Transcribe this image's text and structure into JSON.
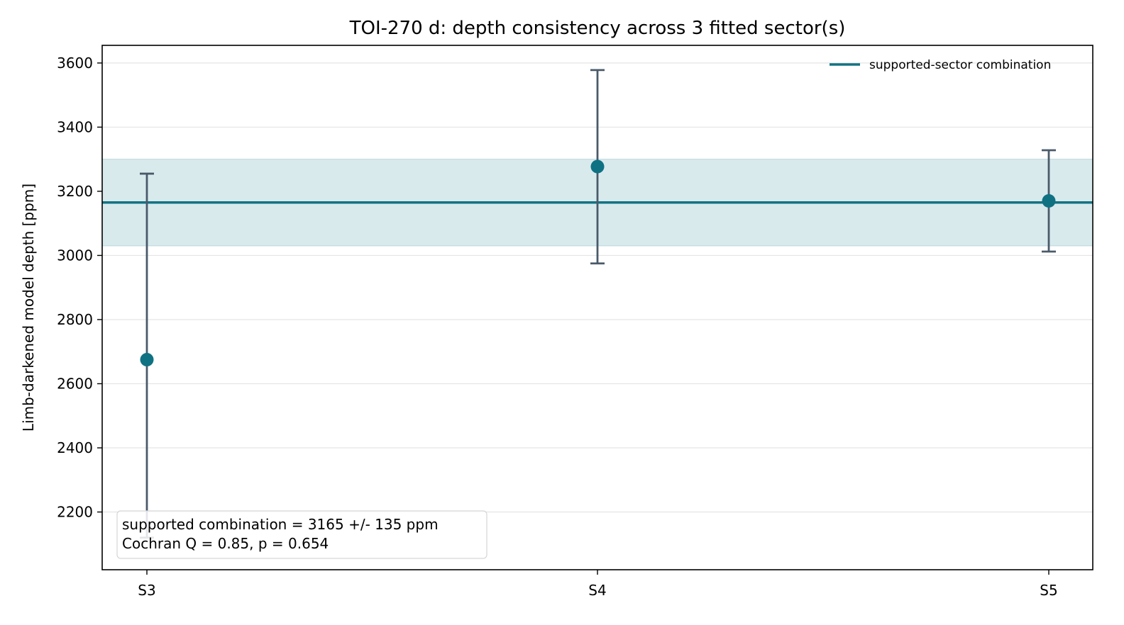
{
  "chart_data": {
    "type": "scatter",
    "title": "TOI-270 d: depth consistency across 3 fitted sector(s)",
    "xlabel": "",
    "ylabel": "Limb-darkened model depth [ppm]",
    "categories": [
      "S3",
      "S4",
      "S5"
    ],
    "values": [
      2675,
      3277,
      3170
    ],
    "err_low": [
      2120,
      2975,
      3012
    ],
    "err_high": [
      3255,
      3578,
      3328
    ],
    "combination": {
      "value": 3165,
      "band_low": 3030,
      "band_high": 3300
    },
    "ylim": [
      2020,
      3655
    ],
    "yticks": [
      2200,
      2400,
      2600,
      2800,
      3000,
      3200,
      3400,
      3600
    ],
    "grid": "horizontal",
    "legend": {
      "position": "top-right",
      "label": "supported-sector combination"
    },
    "annotation": [
      "supported combination = 3165 +/- 135 ppm",
      "Cochran Q = 0.85, p = 0.654"
    ],
    "colors": {
      "marker": "#0e7283",
      "errorbar": "#4a5a6a",
      "combination_line": "#137384",
      "band": "#d9eaed",
      "grid": "#e5e5e5"
    }
  }
}
